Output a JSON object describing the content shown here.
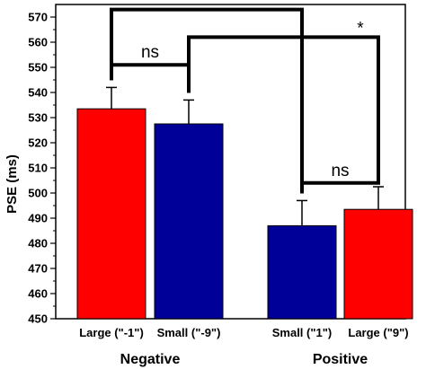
{
  "chart_data": {
    "type": "bar",
    "ylabel": "PSE (ms)",
    "ylim": [
      450,
      575
    ],
    "yticks": [
      450,
      460,
      470,
      480,
      490,
      500,
      510,
      520,
      530,
      540,
      550,
      560,
      570
    ],
    "minor_ticks": true,
    "grid": false,
    "categories": [
      "Large (\"-1\")",
      "Small (\"-9\")",
      "Small (\"1\")",
      "Large (\"9\")"
    ],
    "values": [
      533.5,
      527.5,
      487,
      493.5
    ],
    "errors": [
      8.5,
      9.5,
      10,
      9
    ],
    "bar_colors": [
      "#ff0000",
      "#000099",
      "#000099",
      "#ff0000"
    ],
    "groups": [
      {
        "label": "Negative",
        "categories": [
          0,
          1
        ]
      },
      {
        "label": "Positive",
        "categories": [
          2,
          3
        ]
      }
    ],
    "significance": [
      {
        "from": 0,
        "to": 1,
        "label": "ns",
        "y": 551
      },
      {
        "from": 2,
        "to": 3,
        "label": "ns",
        "y": 504
      },
      {
        "from": 0,
        "to": 2,
        "label": "**",
        "y": 573
      },
      {
        "from": 1,
        "to": 3,
        "label": "*",
        "y": 562
      }
    ]
  }
}
